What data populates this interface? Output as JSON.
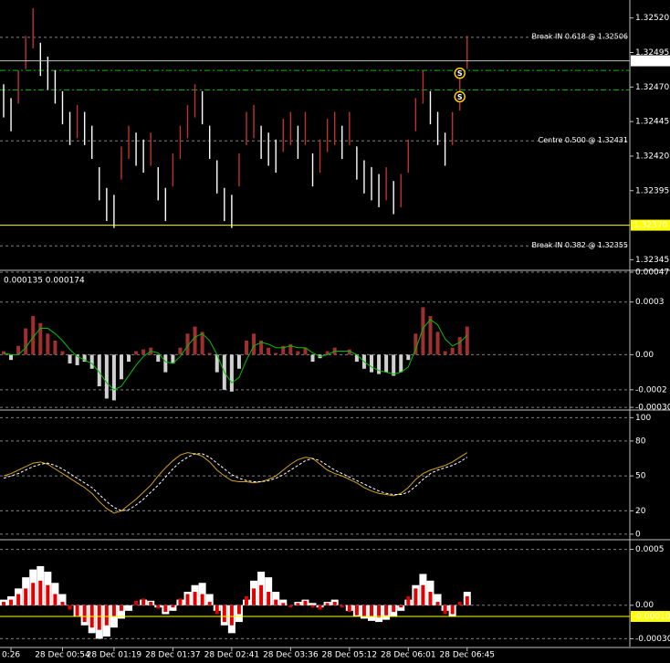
{
  "chart_data": [
    {
      "type": "ohlc",
      "categories": [
        null,
        "0:26",
        null,
        null,
        null,
        null,
        null,
        null,
        "28 Dec 00:54",
        null,
        null,
        null,
        null,
        null,
        null,
        "28 Dec 01:19",
        null,
        null,
        null,
        null,
        null,
        null,
        null,
        "28 Dec 01:37",
        null,
        null,
        null,
        null,
        null,
        null,
        null,
        "28 Dec 02:41",
        null,
        null,
        null,
        null,
        null,
        null,
        null,
        "28 Dec 03:36",
        null,
        null,
        null,
        null,
        null,
        null,
        null,
        "28 Dec 05:12",
        null,
        null,
        null,
        null,
        null,
        null,
        null,
        "28 Dec 06:01",
        null,
        null,
        null,
        null,
        null,
        null,
        null,
        "28 Dec 06:45"
      ],
      "high": [
        1.32472,
        1.32462,
        1.32482,
        1.32507,
        1.32527,
        1.32502,
        1.32492,
        1.32482,
        1.32467,
        1.32452,
        1.32457,
        1.32452,
        1.32442,
        1.32412,
        1.32397,
        1.32392,
        1.32427,
        1.32442,
        1.32437,
        1.32432,
        1.32437,
        1.32412,
        1.32397,
        1.32422,
        1.32442,
        1.32457,
        1.32472,
        1.32467,
        1.32442,
        1.32417,
        1.32397,
        1.32392,
        1.32422,
        1.32452,
        1.32457,
        1.32442,
        1.32437,
        1.32432,
        1.32447,
        1.32452,
        1.32442,
        1.32452,
        1.32422,
        1.32432,
        1.32447,
        1.32452,
        1.32442,
        1.32452,
        1.32427,
        1.32417,
        1.32412,
        1.32407,
        1.32412,
        1.32402,
        1.32407,
        1.32432,
        1.32462,
        1.32482,
        1.32467,
        1.32452,
        1.32437,
        1.32452,
        1.32477,
        1.32507
      ],
      "low": [
        1.32448,
        1.32438,
        1.32458,
        1.32483,
        1.32498,
        1.32478,
        1.32468,
        1.32458,
        1.32443,
        1.32428,
        1.32433,
        1.32428,
        1.32418,
        1.32388,
        1.32373,
        1.32368,
        1.32403,
        1.32418,
        1.32413,
        1.32408,
        1.32413,
        1.32388,
        1.32373,
        1.32398,
        1.32418,
        1.32433,
        1.32448,
        1.32443,
        1.32418,
        1.32393,
        1.32373,
        1.32368,
        1.32398,
        1.32428,
        1.32433,
        1.32418,
        1.32413,
        1.32408,
        1.32423,
        1.32428,
        1.32418,
        1.32428,
        1.32398,
        1.32408,
        1.32423,
        1.32428,
        1.32418,
        1.32428,
        1.32403,
        1.32393,
        1.32388,
        1.32383,
        1.32388,
        1.32378,
        1.32383,
        1.32408,
        1.32438,
        1.32458,
        1.32443,
        1.32428,
        1.32413,
        1.32428,
        1.32453,
        1.32483
      ],
      "colors": {
        "up": "#c03030",
        "down": "#ffffff"
      },
      "ylim": [
        1.32338,
        1.32533
      ],
      "yticks": [
        {
          "value": 1.3252,
          "label": "1.32520"
        },
        1.32495,
        {
          "value": 1.3247,
          "label": "1.32470"
        },
        1.32445,
        {
          "value": 1.3242,
          "label": "1.32420"
        },
        1.32395,
        1.32345
      ],
      "grid": false,
      "levels": [
        {
          "value": 1.32506,
          "label": "Break IN 0.618 @ 1.32506",
          "color": "#808080"
        },
        {
          "value": 1.32431,
          "label": "Centre 0.500 @ 1.32431",
          "color": "#808080"
        },
        {
          "value": 1.32355,
          "label": "Break IN 0.382 @ 1.32355",
          "color": "#808080"
        },
        {
          "value": 1.32482,
          "color": "#00c000"
        },
        {
          "value": 1.32468,
          "color": "#00c000"
        }
      ],
      "price_markers": [
        {
          "value": 1.32489,
          "label": "1.32489",
          "color": "#c0c0c0",
          "box": "#ffffff"
        },
        {
          "value": 1.3237,
          "label": "1.32370",
          "color": "#ffff00",
          "box": "#ffff00"
        }
      ],
      "annotations": [
        {
          "text": "S",
          "x": 62,
          "y": 1.3248
        },
        {
          "text": "S",
          "x": 62,
          "y": 1.32463
        }
      ]
    },
    {
      "type": "bar",
      "label": "0.000135 0.000174",
      "values": [
        2e-05,
        -3e-05,
        5e-05,
        0.00015,
        0.00022,
        0.00018,
        0.00012,
        8e-05,
        2e-05,
        -5e-05,
        -6e-05,
        -4e-05,
        -8e-05,
        -0.00018,
        -0.00025,
        -0.00026,
        -0.00014,
        -4e-05,
        2e-05,
        3e-05,
        4e-05,
        -4e-05,
        -0.0001,
        -5e-05,
        4e-05,
        0.00012,
        0.00016,
        0.00013,
        1e-05,
        -0.0001,
        -0.0002,
        -0.00021,
        -8e-05,
        8e-05,
        0.00012,
        8e-05,
        4e-05,
        1e-05,
        5e-05,
        6e-05,
        2e-05,
        4e-05,
        -4e-05,
        -2e-05,
        2e-05,
        4e-05,
        0,
        3e-05,
        -4e-05,
        -8e-05,
        -0.0001,
        -0.00011,
        -0.0001,
        -0.00012,
        -0.0001,
        -3e-05,
        0.00012,
        0.00027,
        0.00022,
        0.00013,
        2e-05,
        4e-05,
        0.0001,
        0.00016
      ],
      "colors": {
        "positive": "#a03030",
        "negative": "#d0d0d0"
      },
      "signal": {
        "color": "#00c000",
        "values": [
          1e-05,
          0,
          0,
          4e-05,
          0.0001,
          0.00015,
          0.00015,
          0.00012,
          8e-05,
          3e-05,
          -1e-05,
          -3e-05,
          -5e-05,
          -0.0001,
          -0.00016,
          -0.0002,
          -0.00018,
          -0.00012,
          -6e-05,
          -1e-05,
          2e-05,
          1e-05,
          -4e-05,
          -5e-05,
          -1e-05,
          5e-05,
          0.0001,
          0.00012,
          8e-05,
          0,
          -0.0001,
          -0.00016,
          -0.00013,
          -3e-05,
          5e-05,
          7e-05,
          6e-05,
          4e-05,
          4e-05,
          5e-05,
          4e-05,
          4e-05,
          1e-05,
          -1e-05,
          0,
          2e-05,
          2e-05,
          2e-05,
          0,
          -4e-05,
          -7e-05,
          -9e-05,
          -0.0001,
          -0.00011,
          -0.0001,
          -7e-05,
          3e-05,
          0.00015,
          0.0002,
          0.00017,
          9e-05,
          5e-05,
          7e-05,
          0.00011
        ]
      },
      "ylim": [
        -0.00031,
        0.00047
      ],
      "yticks": [
        0.00047,
        0.0003,
        {
          "value": 0,
          "label": "0.00"
        },
        -0.0002,
        {
          "value": -0.0003,
          "label": "-0.00030"
        }
      ],
      "grid": true
    },
    {
      "type": "line",
      "series": [
        {
          "color": "#d4a017",
          "dash": false,
          "values": [
            50,
            52,
            55,
            58,
            61,
            62,
            60,
            56,
            52,
            48,
            44,
            40,
            35,
            28,
            22,
            18,
            20,
            25,
            30,
            36,
            42,
            50,
            57,
            63,
            68,
            70,
            69,
            67,
            62,
            55,
            50,
            46,
            45,
            45,
            44,
            45,
            47,
            50,
            55,
            60,
            64,
            66,
            65,
            60,
            55,
            52,
            50,
            47,
            44,
            40,
            37,
            35,
            34,
            33,
            35,
            40,
            47,
            52,
            55,
            57,
            59,
            62,
            66,
            70
          ]
        },
        {
          "color": "#ffffff",
          "dash": true,
          "values": [
            48,
            50,
            52,
            55,
            58,
            60,
            61,
            59,
            56,
            52,
            48,
            44,
            40,
            34,
            28,
            23,
            20,
            21,
            25,
            30,
            36,
            42,
            49,
            56,
            62,
            66,
            69,
            69,
            66,
            61,
            56,
            51,
            48,
            46,
            45,
            45,
            46,
            48,
            51,
            55,
            59,
            63,
            65,
            63,
            59,
            55,
            52,
            49,
            46,
            43,
            40,
            37,
            35,
            34,
            34,
            36,
            41,
            47,
            52,
            55,
            57,
            59,
            62,
            66
          ]
        }
      ],
      "ylim": [
        -4,
        105
      ],
      "yticks": [
        100,
        80,
        50,
        20,
        0
      ],
      "grid": true
    },
    {
      "type": "bar",
      "series": [
        {
          "color": "#ffffff",
          "values": [
            5e-05,
            8e-05,
            0.00015,
            0.00025,
            0.00032,
            0.00035,
            0.0003,
            0.0002,
            0.0001,
            0,
            -0.0001,
            -0.00018,
            -0.00025,
            -0.0003,
            -0.00028,
            -0.0002,
            -0.00012,
            -5e-05,
            0,
            5e-05,
            4e-05,
            -2e-05,
            -8e-05,
            -5e-05,
            5e-05,
            0.00012,
            0.00018,
            0.0002,
            0.0001,
            -5e-05,
            -0.00018,
            -0.00025,
            -0.00015,
            5e-05,
            0.00022,
            0.0003,
            0.00025,
            0.00012,
            5e-05,
            0,
            3e-05,
            5e-05,
            2e-05,
            -2e-05,
            3e-05,
            5e-05,
            0,
            -5e-05,
            -0.0001,
            -0.00012,
            -0.00014,
            -0.00015,
            -0.00013,
            -0.0001,
            -5e-05,
            5e-05,
            0.00018,
            0.00028,
            0.00022,
            0.0001,
            -5e-05,
            -0.0001,
            0,
            0.00012
          ]
        },
        {
          "color": "#e00000",
          "values": [
            3e-05,
            5e-05,
            0.0001,
            0.00015,
            0.0002,
            0.00022,
            0.00018,
            0.0001,
            3e-05,
            -4e-05,
            -0.0001,
            -0.00015,
            -0.0002,
            -0.00022,
            -0.00018,
            -0.0001,
            -5e-05,
            0,
            4e-05,
            6e-05,
            3e-05,
            -3e-05,
            -6e-05,
            -2e-05,
            6e-05,
            0.0001,
            0.00012,
            0.0001,
            3e-05,
            -8e-05,
            -0.00015,
            -0.00018,
            -8e-05,
            8e-05,
            0.00015,
            0.00018,
            0.00012,
            5e-05,
            2e-05,
            -2e-05,
            2e-05,
            4e-05,
            -2e-05,
            -4e-05,
            2e-05,
            3e-05,
            -2e-05,
            -6e-05,
            -9e-05,
            -0.0001,
            -0.0001,
            -0.00011,
            -9e-05,
            -6e-05,
            -2e-05,
            8e-05,
            0.00015,
            0.00018,
            0.00012,
            3e-05,
            -8e-05,
            -8e-05,
            3e-05,
            8e-05
          ]
        }
      ],
      "ylim": [
        -0.00037,
        0.00057
      ],
      "yticks": [
        0.0005,
        {
          "value": 0,
          "label": "0.00"
        },
        {
          "value": -0.0003,
          "label": "-0.00030"
        }
      ],
      "grid": true,
      "price_markers": [
        {
          "value": -0.0001,
          "label": "-0.00010",
          "color": "#ffff00",
          "box": "#ffff00"
        }
      ]
    }
  ]
}
